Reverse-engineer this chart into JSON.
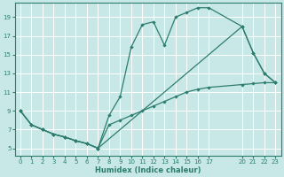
{
  "xlabel": "Humidex (Indice chaleur)",
  "bg_color": "#c8e8e8",
  "grid_color": "#ffffff",
  "line_color": "#2d7d6e",
  "xlim": [
    -0.5,
    23.5
  ],
  "ylim": [
    4.2,
    20.5
  ],
  "xticks": [
    0,
    1,
    2,
    3,
    4,
    5,
    6,
    7,
    8,
    9,
    10,
    11,
    12,
    13,
    14,
    15,
    16,
    17,
    20,
    21,
    22,
    23
  ],
  "yticks": [
    5,
    7,
    9,
    11,
    13,
    15,
    17,
    19
  ],
  "line1_x": [
    0,
    1,
    2,
    3,
    4,
    5,
    6,
    7,
    8,
    9,
    10,
    11,
    12,
    13,
    14,
    15,
    16,
    17,
    20,
    21,
    22,
    23
  ],
  "line1_y": [
    9,
    7.5,
    7,
    6.5,
    6.2,
    5.8,
    5.5,
    5.0,
    7.5,
    8.0,
    8.5,
    9.0,
    9.5,
    10.0,
    10.5,
    11.0,
    11.3,
    11.5,
    11.8,
    11.9,
    12.0,
    12.0
  ],
  "line2_x": [
    0,
    1,
    2,
    3,
    4,
    5,
    6,
    7,
    8,
    9,
    10,
    11,
    12,
    13,
    14,
    15,
    16,
    17,
    20,
    21,
    22,
    23
  ],
  "line2_y": [
    9,
    7.5,
    7,
    6.5,
    6.2,
    5.8,
    5.5,
    5.0,
    8.5,
    10.5,
    15.8,
    18.2,
    18.5,
    16.0,
    19.0,
    19.5,
    20.0,
    20.0,
    18.0,
    15.2,
    13.0,
    12.0
  ],
  "line3_x": [
    0,
    1,
    2,
    3,
    4,
    5,
    6,
    7,
    20,
    21,
    22,
    23
  ],
  "line3_y": [
    9,
    7.5,
    7,
    6.5,
    6.2,
    5.8,
    5.5,
    5.0,
    18.0,
    15.2,
    13.0,
    12.0
  ]
}
